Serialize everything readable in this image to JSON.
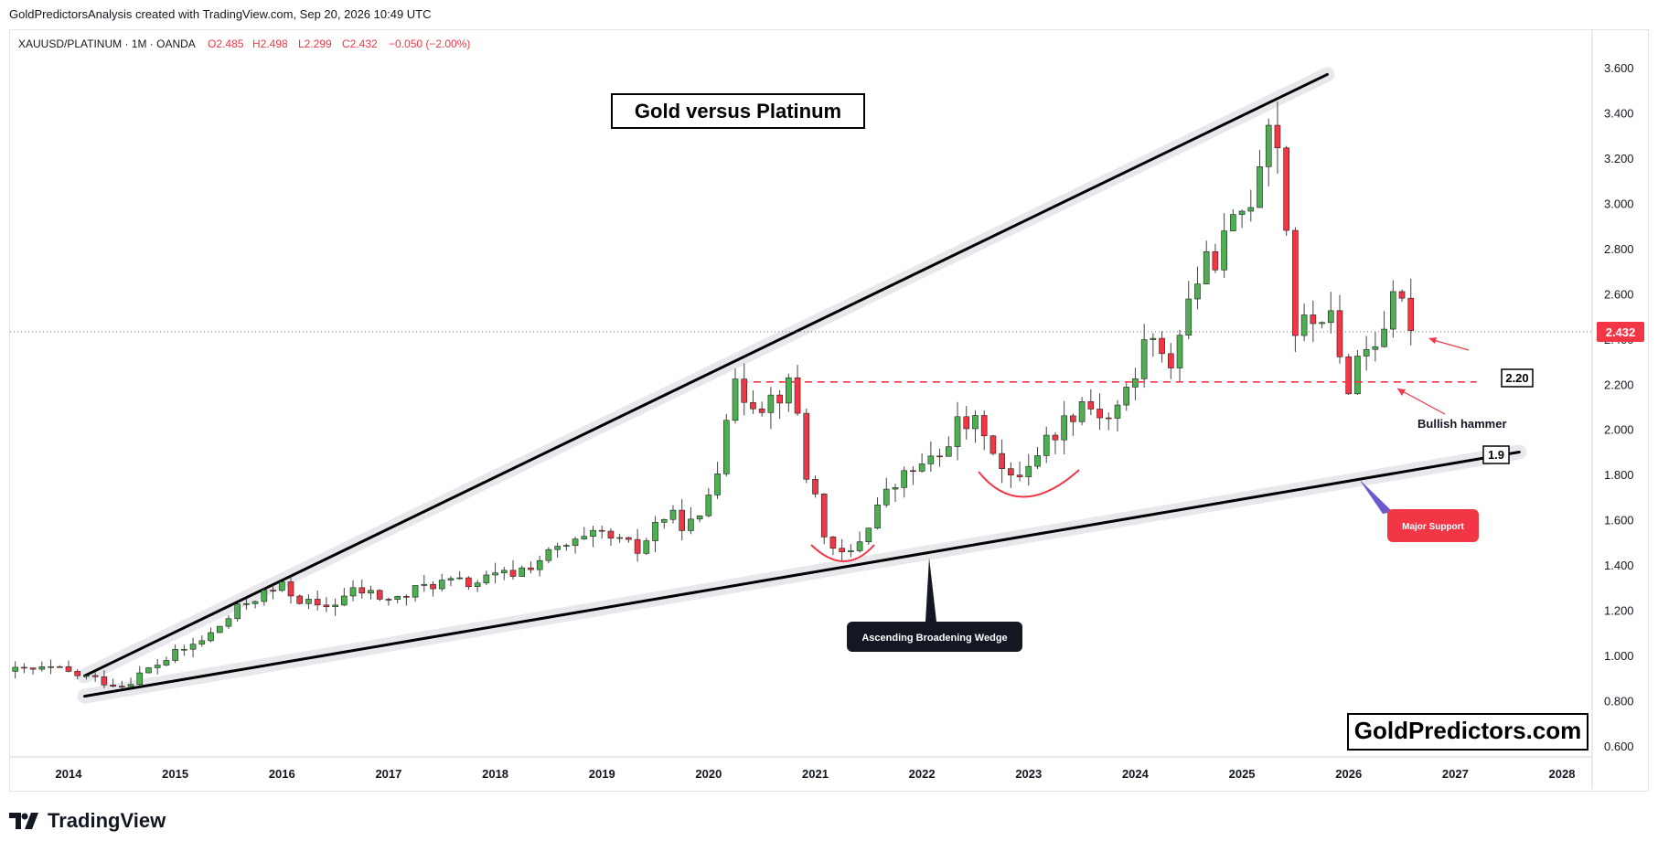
{
  "header": {
    "credit": "GoldPredictorsAnalysis created with TradingView.com, Sep 20, 2026 10:49 UTC"
  },
  "legend": {
    "symbol": "XAUUSD/PLATINUM · 1M · OANDA",
    "open": "O2.485",
    "high": "H2.498",
    "low": "L2.299",
    "close": "C2.432",
    "change": "−0.050 (−2.00%)"
  },
  "annotations": {
    "title": "Gold versus Platinum",
    "wedge_label": "Ascending Broadening Wedge",
    "support_label": "Major Support",
    "hammer_label": "Bullish hammer",
    "level_220": "2.20",
    "level_19": "1.9",
    "watermark": "GoldPredictors.com"
  },
  "footer": {
    "brand": "TradingView"
  },
  "colors": {
    "up": "#4caf50",
    "down": "#f23645",
    "price_tag": "#f23645",
    "line": "#000000"
  },
  "chart_data": {
    "type": "candlestick",
    "title": "Gold versus Platinum",
    "symbol": "XAUUSD/PLATINUM",
    "interval": "1M",
    "last_price": "2.432",
    "ylim": [
      0.55,
      3.72
    ],
    "xlim": [
      2013.5,
      2028.2
    ],
    "y_ticks": [
      "0.600",
      "0.800",
      "1.000",
      "1.200",
      "1.400",
      "1.600",
      "1.800",
      "2.000",
      "2.200",
      "2.400",
      "2.600",
      "2.800",
      "3.000",
      "3.200",
      "3.400",
      "3.600"
    ],
    "x_ticks": [
      "2014",
      "2015",
      "2016",
      "2017",
      "2018",
      "2019",
      "2020",
      "2021",
      "2022",
      "2023",
      "2024",
      "2025",
      "2026",
      "2027",
      "2028"
    ],
    "anchors": [
      {
        "t": 2013.5,
        "p": 0.93
      },
      {
        "t": 2013.85,
        "p": 0.94
      },
      {
        "t": 2014.2,
        "p": 0.9
      },
      {
        "t": 2014.5,
        "p": 0.87
      },
      {
        "t": 2014.9,
        "p": 0.98
      },
      {
        "t": 2015.3,
        "p": 1.08
      },
      {
        "t": 2015.7,
        "p": 1.25
      },
      {
        "t": 2016.0,
        "p": 1.3
      },
      {
        "t": 2016.35,
        "p": 1.2
      },
      {
        "t": 2016.7,
        "p": 1.29
      },
      {
        "t": 2017.05,
        "p": 1.24
      },
      {
        "t": 2017.4,
        "p": 1.32
      },
      {
        "t": 2017.8,
        "p": 1.32
      },
      {
        "t": 2018.2,
        "p": 1.37
      },
      {
        "t": 2018.6,
        "p": 1.47
      },
      {
        "t": 2019.0,
        "p": 1.53
      },
      {
        "t": 2019.35,
        "p": 1.46
      },
      {
        "t": 2019.55,
        "p": 1.62
      },
      {
        "t": 2019.9,
        "p": 1.57
      },
      {
        "t": 2020.08,
        "p": 1.84
      },
      {
        "t": 2020.2,
        "p": 2.18
      },
      {
        "t": 2020.5,
        "p": 2.12
      },
      {
        "t": 2020.8,
        "p": 2.2
      },
      {
        "t": 2020.9,
        "p": 1.82
      },
      {
        "t": 2021.0,
        "p": 1.7
      },
      {
        "t": 2021.15,
        "p": 1.44
      },
      {
        "t": 2021.35,
        "p": 1.45
      },
      {
        "t": 2021.6,
        "p": 1.68
      },
      {
        "t": 2021.9,
        "p": 1.82
      },
      {
        "t": 2022.15,
        "p": 1.86
      },
      {
        "t": 2022.3,
        "p": 2.02
      },
      {
        "t": 2022.6,
        "p": 2.01
      },
      {
        "t": 2022.8,
        "p": 1.75
      },
      {
        "t": 2023.0,
        "p": 1.86
      },
      {
        "t": 2023.3,
        "p": 2.02
      },
      {
        "t": 2023.5,
        "p": 2.13
      },
      {
        "t": 2023.75,
        "p": 2.05
      },
      {
        "t": 2024.0,
        "p": 2.22
      },
      {
        "t": 2024.1,
        "p": 2.45
      },
      {
        "t": 2024.3,
        "p": 2.25
      },
      {
        "t": 2024.55,
        "p": 2.65
      },
      {
        "t": 2024.8,
        "p": 2.8
      },
      {
        "t": 2025.1,
        "p": 3.05
      },
      {
        "t": 2025.25,
        "p": 3.4
      },
      {
        "t": 2025.4,
        "p": 3.15
      },
      {
        "t": 2025.45,
        "p": 2.42
      },
      {
        "t": 2025.8,
        "p": 2.52
      },
      {
        "t": 2025.9,
        "p": 2.4
      },
      {
        "t": 2025.95,
        "p": 2.1
      },
      {
        "t": 2026.05,
        "p": 2.3
      },
      {
        "t": 2026.25,
        "p": 2.4
      },
      {
        "t": 2026.45,
        "p": 2.58
      },
      {
        "t": 2026.65,
        "p": 2.43
      }
    ],
    "trendlines": [
      {
        "name": "upper-wedge-line",
        "from": [
          2014.15,
          0.91
        ],
        "to": [
          2025.8,
          3.57
        ]
      },
      {
        "name": "lower-wedge-line",
        "from": [
          2014.15,
          0.82
        ],
        "to": [
          2027.6,
          1.9
        ]
      }
    ],
    "levels": [
      {
        "name": "resistance-2.20",
        "value": 2.21,
        "from": 2020.3,
        "to": 2027.2,
        "label": "2.20"
      },
      {
        "name": "last-price",
        "value": 2.432
      }
    ]
  }
}
